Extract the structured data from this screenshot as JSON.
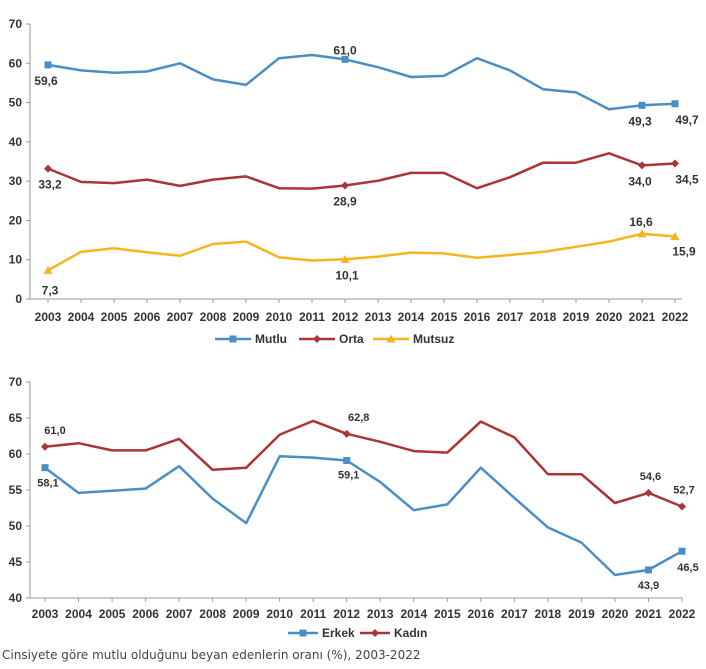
{
  "caption": "Cinsiyete göre mutlu olduğunu beyan edenlerin oranı (%), 2003-2022",
  "chart_data": [
    {
      "type": "line",
      "x": [
        "2003",
        "2004",
        "2005",
        "2006",
        "2007",
        "2008",
        "2009",
        "2010",
        "2011",
        "2012",
        "2013",
        "2014",
        "2015",
        "2016",
        "2017",
        "2018",
        "2019",
        "2020",
        "2021",
        "2022"
      ],
      "ylim": [
        0,
        70
      ],
      "yticks": [
        0,
        10,
        20,
        30,
        40,
        50,
        60,
        70
      ],
      "grid": false,
      "legend_position": "bottom",
      "series": [
        {
          "name": "Mutlu",
          "color": "#4a8ec8",
          "marker": "square",
          "values": [
            59.6,
            58.2,
            57.6,
            57.9,
            60.0,
            55.9,
            54.5,
            61.3,
            62.1,
            61.0,
            59.0,
            56.5,
            56.8,
            61.3,
            58.2,
            53.4,
            52.6,
            48.3,
            49.3,
            49.7
          ],
          "labels": {
            "0": "59,6",
            "9": "61,0",
            "18": "49,3",
            "19": "49,7"
          }
        },
        {
          "name": "Orta",
          "color": "#a93535",
          "marker": "diamond",
          "values": [
            33.2,
            29.8,
            29.5,
            30.4,
            28.8,
            30.4,
            31.2,
            28.2,
            28.1,
            28.9,
            30.1,
            32.1,
            32.1,
            28.2,
            31.0,
            34.7,
            34.7,
            37.1,
            34.0,
            34.5
          ],
          "labels": {
            "0": "33,2",
            "9": "28,9",
            "18": "34,0",
            "19": "34,5"
          }
        },
        {
          "name": "Mutsuz",
          "color": "#f3b61f",
          "marker": "triangle",
          "values": [
            7.3,
            12.0,
            12.9,
            11.9,
            11.0,
            14.0,
            14.6,
            10.6,
            9.8,
            10.1,
            10.8,
            11.8,
            11.6,
            10.5,
            11.2,
            12.0,
            13.3,
            14.6,
            16.6,
            15.9
          ],
          "labels": {
            "0": "7,3",
            "9": "10,1",
            "18": "16,6",
            "19": "15,9"
          }
        }
      ]
    },
    {
      "type": "line",
      "x": [
        "2003",
        "2004",
        "2005",
        "2006",
        "2007",
        "2008",
        "2009",
        "2010",
        "2011",
        "2012",
        "2013",
        "2014",
        "2015",
        "2016",
        "2017",
        "2018",
        "2019",
        "2020",
        "2021",
        "2022"
      ],
      "ylim": [
        40,
        70
      ],
      "yticks": [
        40,
        45,
        50,
        55,
        60,
        65,
        70
      ],
      "grid": false,
      "legend_position": "bottom",
      "series": [
        {
          "name": "Erkek",
          "color": "#4a8ec8",
          "marker": "square",
          "values": [
            58.1,
            54.6,
            54.9,
            55.2,
            58.3,
            53.8,
            50.4,
            59.7,
            59.5,
            59.1,
            56.1,
            52.2,
            53.0,
            58.1,
            53.9,
            49.8,
            47.7,
            43.2,
            43.9,
            46.5
          ],
          "labels": {
            "0": "58,1",
            "9": "59,1",
            "18": "43,9",
            "19": "46,5"
          }
        },
        {
          "name": "Kadın",
          "color": "#a93535",
          "marker": "diamond",
          "values": [
            61.0,
            61.5,
            60.5,
            60.5,
            62.1,
            57.8,
            58.1,
            62.7,
            64.6,
            62.8,
            61.7,
            60.4,
            60.2,
            64.5,
            62.3,
            57.2,
            57.2,
            53.2,
            54.6,
            52.7
          ],
          "labels": {
            "0": "61,0",
            "9": "62,8",
            "18": "54,6",
            "19": "52,7"
          }
        }
      ]
    }
  ]
}
